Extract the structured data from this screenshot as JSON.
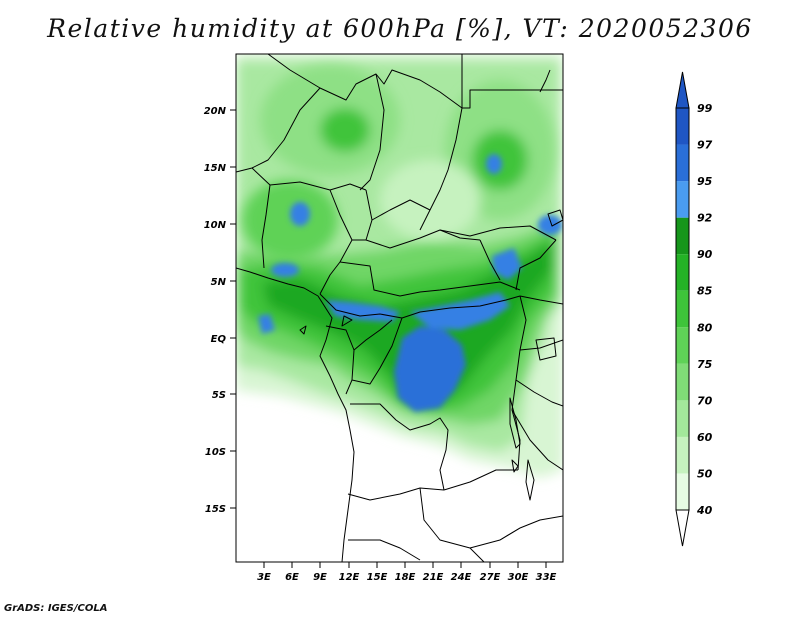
{
  "title": "Relative humidity at 600hPa [%], VT: 2020052306",
  "credit": "GrADS: IGES/COLA",
  "map": {
    "y_ticks": [
      "20N",
      "15N",
      "10N",
      "5N",
      "EQ",
      "5S",
      "10S",
      "15S"
    ],
    "x_ticks": [
      "3E",
      "6E",
      "9E",
      "12E",
      "15E",
      "18E",
      "21E",
      "24E",
      "27E",
      "30E",
      "33E"
    ]
  },
  "colorbar": {
    "labels": [
      "40",
      "50",
      "60",
      "70",
      "75",
      "80",
      "85",
      "90",
      "92",
      "95",
      "97",
      "99"
    ],
    "colors": [
      "#ffffff",
      "#e6fbe3",
      "#c6f2bf",
      "#a3e89b",
      "#80dc77",
      "#5fd257",
      "#3ec43a",
      "#24b226",
      "#16961b",
      "#4a9cf0",
      "#2a6fd8",
      "#1f56c4"
    ],
    "top_arrow_color": "#1f56c4"
  }
}
